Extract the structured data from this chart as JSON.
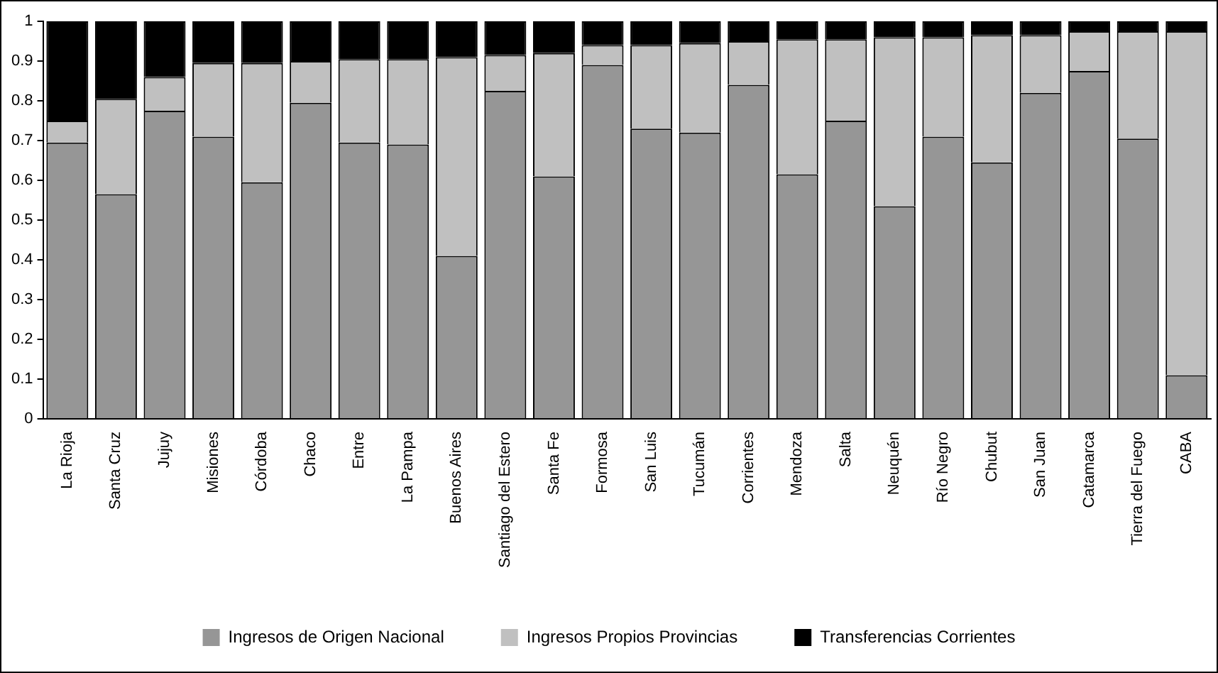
{
  "chart_data": {
    "type": "bar",
    "stacked": true,
    "categories": [
      "La Rioja",
      "Santa Cruz",
      "Jujuy",
      "Misiones",
      "Córdoba",
      "Chaco",
      "Entre",
      "La Pampa",
      "Buenos Aires",
      "Santiago del Estero",
      "Santa Fe",
      "Formosa",
      "San Luis",
      "Tucumán",
      "Corrientes",
      "Mendoza",
      "Salta",
      "Neuquén",
      "Río Negro",
      "Chubut",
      "San Juan",
      "Catamarca",
      "Tierra del Fuego",
      "CABA"
    ],
    "series": [
      {
        "name": "Ingresos de Origen Nacional",
        "color": "#969696",
        "values": [
          0.695,
          0.565,
          0.775,
          0.71,
          0.595,
          0.795,
          0.695,
          0.69,
          0.41,
          0.825,
          0.61,
          0.89,
          0.73,
          0.72,
          0.84,
          0.615,
          0.75,
          0.535,
          0.71,
          0.645,
          0.82,
          0.875,
          0.705,
          0.11
        ]
      },
      {
        "name": "Ingresos Propios Provincias",
        "color": "#c0c0c0",
        "values": [
          0.055,
          0.24,
          0.085,
          0.185,
          0.3,
          0.105,
          0.21,
          0.215,
          0.5,
          0.09,
          0.31,
          0.05,
          0.21,
          0.225,
          0.11,
          0.34,
          0.205,
          0.425,
          0.25,
          0.32,
          0.145,
          0.1,
          0.27,
          0.865
        ]
      },
      {
        "name": "Transferencias Corrientes",
        "color": "#000000",
        "values": [
          0.25,
          0.195,
          0.14,
          0.105,
          0.105,
          0.1,
          0.095,
          0.095,
          0.09,
          0.085,
          0.08,
          0.06,
          0.06,
          0.055,
          0.05,
          0.045,
          0.045,
          0.04,
          0.04,
          0.035,
          0.035,
          0.025,
          0.025,
          0.025
        ]
      }
    ],
    "ylim": [
      0,
      1
    ],
    "yticks": [
      0,
      0.1,
      0.2,
      0.3,
      0.4,
      0.5,
      0.6,
      0.7,
      0.8,
      0.9,
      1
    ],
    "grid": false,
    "legend": "bottom"
  }
}
